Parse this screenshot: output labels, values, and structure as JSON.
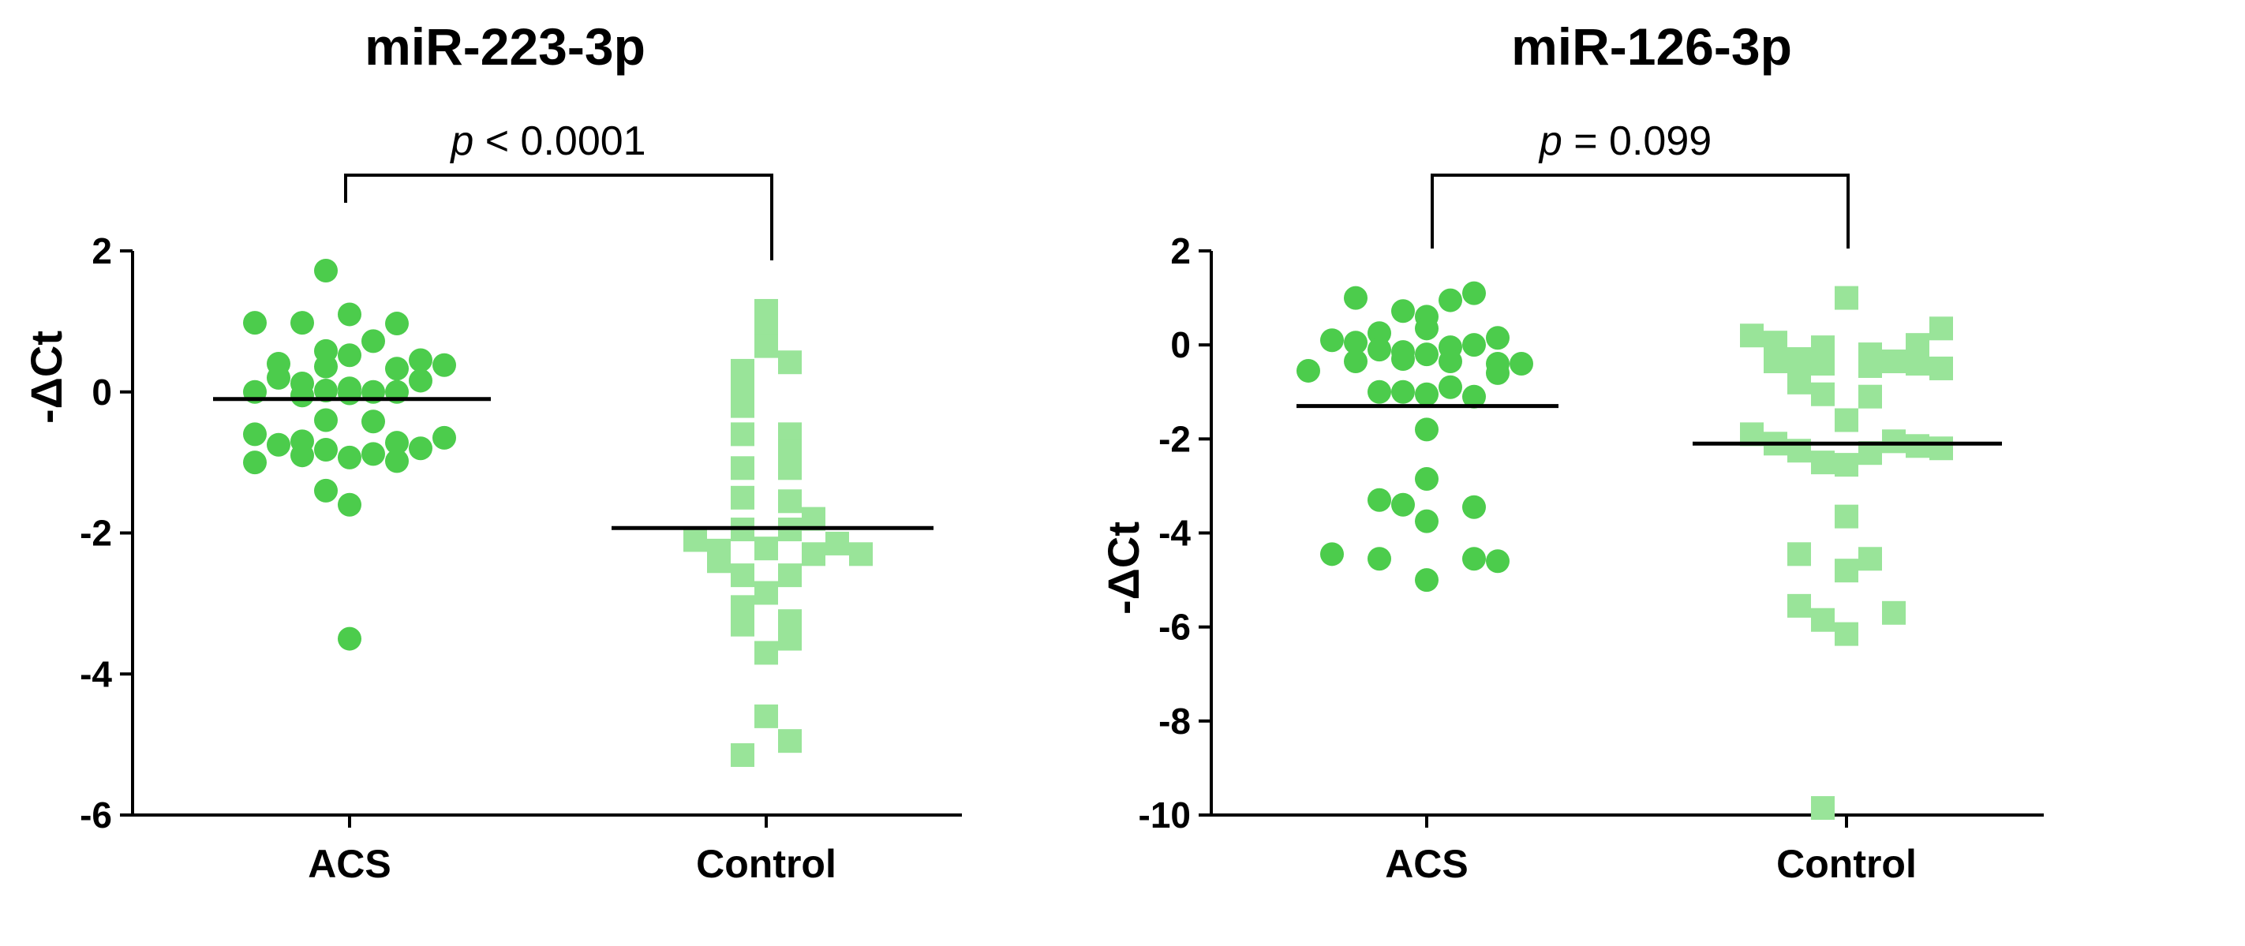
{
  "chart_data": [
    {
      "type": "scatter",
      "title": "miR-223-3p",
      "ylabel": "-ΔCt",
      "xlabel": "",
      "ylim": [
        -6,
        2
      ],
      "yticks": [
        -6,
        -4,
        -2,
        0,
        2
      ],
      "yticklabels": [
        "-6",
        "-4",
        "-2",
        "0",
        "2"
      ],
      "categories": [
        "ACS",
        "Control"
      ],
      "annotation": {
        "prefix": "p",
        "text": " < 0.0001"
      },
      "colors": {
        "ACS": "#4ccc4c",
        "Control": "#99e499"
      },
      "series": [
        {
          "name": "ACS",
          "marker": "circle",
          "mean": -0.1,
          "values": [
            1.72,
            1.1,
            0.98,
            0.98,
            0.97,
            0.72,
            0.58,
            0.52,
            0.45,
            0.4,
            0.38,
            0.36,
            0.33,
            0.2,
            0.16,
            0.12,
            0.05,
            0.02,
            0.0,
            0.0,
            0.0,
            -0.02,
            -0.05,
            -0.4,
            -0.42,
            -0.6,
            -0.65,
            -0.7,
            -0.72,
            -0.75,
            -0.8,
            -0.82,
            -0.88,
            -0.9,
            -0.93,
            -0.98,
            -1.0,
            -1.4,
            -1.6,
            -3.5
          ],
          "offsets": [
            -1,
            0,
            -4,
            -2,
            2,
            1,
            -1,
            0,
            3,
            -3,
            4,
            -1,
            2,
            -3,
            3,
            -2,
            0,
            -1,
            1,
            2,
            -4,
            0,
            -2,
            -1,
            1,
            -4,
            4,
            -2,
            2,
            -3,
            3,
            -1,
            1,
            -2,
            0,
            2,
            -4,
            -1,
            0,
            0
          ]
        },
        {
          "name": "Control",
          "marker": "square",
          "mean": -1.93,
          "values": [
            1.15,
            0.95,
            0.65,
            0.42,
            0.3,
            0.12,
            -0.2,
            -0.6,
            -0.6,
            -0.85,
            -1.08,
            -1.08,
            -1.5,
            -1.55,
            -1.8,
            -1.95,
            -1.95,
            -2.1,
            -2.15,
            -2.22,
            -2.25,
            -2.3,
            -2.3,
            -2.4,
            -2.6,
            -2.6,
            -2.85,
            -3.05,
            -3.25,
            -3.3,
            -3.5,
            -3.7,
            -4.6,
            -4.95,
            -5.15
          ],
          "offsets": [
            0,
            0,
            0,
            1,
            -1,
            -1,
            -1,
            -1,
            1,
            1,
            -1,
            1,
            -1,
            1,
            2,
            -1,
            1,
            -3,
            3,
            0,
            -2,
            2,
            4,
            -2,
            -1,
            1,
            0,
            -1,
            1,
            -1,
            1,
            0,
            0,
            1,
            -1
          ]
        }
      ]
    },
    {
      "type": "scatter",
      "title": "miR-126-3p",
      "ylabel": "-ΔCt",
      "xlabel": "",
      "ylim": [
        -10,
        2
      ],
      "yticks": [
        -10,
        -8,
        -6,
        -4,
        -2,
        0,
        2
      ],
      "yticklabels": [
        "-10",
        "-8",
        "-6",
        "-4",
        "-2",
        "0",
        "2"
      ],
      "categories": [
        "ACS",
        "Control"
      ],
      "annotation": {
        "prefix": "p",
        "text": " = 0.099"
      },
      "colors": {
        "ACS": "#4ccc4c",
        "Control": "#99e499"
      },
      "series": [
        {
          "name": "ACS",
          "marker": "circle",
          "mean": -1.3,
          "values": [
            1.1,
            1.0,
            0.95,
            0.72,
            0.6,
            0.35,
            0.25,
            0.15,
            0.1,
            0.05,
            0.0,
            -0.05,
            -0.1,
            -0.15,
            -0.2,
            -0.3,
            -0.35,
            -0.35,
            -0.4,
            -0.4,
            -0.55,
            -0.6,
            -0.9,
            -1.0,
            -1.0,
            -1.05,
            -1.1,
            -1.8,
            -2.85,
            -3.3,
            -3.4,
            -3.45,
            -3.75,
            -4.45,
            -4.55,
            -4.55,
            -4.6,
            -5.0
          ],
          "offsets": [
            2,
            -3,
            1,
            -1,
            0,
            0,
            -2,
            3,
            -4,
            -3,
            2,
            1,
            -2,
            -1,
            0,
            -1,
            1,
            -3,
            4,
            3,
            -5,
            3,
            1,
            -1,
            -2,
            0,
            2,
            0,
            0,
            -2,
            -1,
            2,
            0,
            -4,
            -2,
            2,
            3,
            0
          ]
        },
        {
          "name": "Control",
          "marker": "square",
          "mean": -2.1,
          "values": [
            1.0,
            0.35,
            0.2,
            0.05,
            0.0,
            -0.05,
            -0.2,
            -0.3,
            -0.35,
            -0.35,
            -0.4,
            -0.4,
            -0.45,
            -0.5,
            -0.8,
            -1.05,
            -1.1,
            -1.6,
            -1.9,
            -2.05,
            -2.1,
            -2.15,
            -2.2,
            -2.25,
            -2.3,
            -2.5,
            -2.55,
            -3.65,
            -4.45,
            -4.55,
            -4.8,
            -5.55,
            -5.7,
            -5.85,
            -6.15,
            -9.85
          ],
          "offsets": [
            0,
            4,
            -4,
            -3,
            3,
            -1,
            1,
            -2,
            -3,
            2,
            3,
            -1,
            1,
            4,
            -2,
            -1,
            1,
            0,
            -4,
            2,
            -3,
            3,
            4,
            -2,
            1,
            -1,
            0,
            0,
            -2,
            1,
            0,
            -2,
            2,
            -1,
            0,
            -1
          ]
        }
      ]
    }
  ]
}
